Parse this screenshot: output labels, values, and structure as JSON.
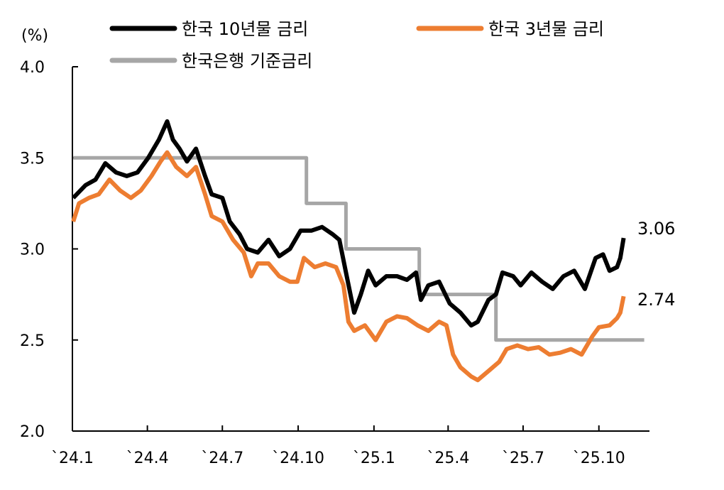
{
  "chart_data": {
    "type": "line",
    "ylabel": "(%)",
    "ylim": [
      2.0,
      4.0
    ],
    "yticks": [
      "4.0",
      "3.5",
      "3.0",
      "2.5",
      "2.0"
    ],
    "xticks": [
      "`24.1",
      "`24.4",
      "`24.7",
      "`24.10",
      "`25.1",
      "`25.4",
      "`25.7",
      "`25.10"
    ],
    "xtick_dates": [
      "2024-01-01",
      "2024-04-01",
      "2024-07-01",
      "2024-10-01",
      "2025-01-01",
      "2025-04-01",
      "2025-07-01",
      "2025-10-01"
    ],
    "grid": false,
    "legend_position": "top",
    "series": [
      {
        "name": "한국 10년물 금리",
        "color": "#000000",
        "end_label": "3.06",
        "points": [
          [
            "2024-01-02",
            3.28
          ],
          [
            "2024-01-17",
            3.35
          ],
          [
            "2024-01-29",
            3.38
          ],
          [
            "2024-02-10",
            3.47
          ],
          [
            "2024-02-23",
            3.42
          ],
          [
            "2024-03-07",
            3.4
          ],
          [
            "2024-03-20",
            3.42
          ],
          [
            "2024-04-02",
            3.5
          ],
          [
            "2024-04-15",
            3.6
          ],
          [
            "2024-04-25",
            3.7
          ],
          [
            "2024-05-02",
            3.6
          ],
          [
            "2024-05-10",
            3.55
          ],
          [
            "2024-05-19",
            3.48
          ],
          [
            "2024-05-30",
            3.55
          ],
          [
            "2024-06-10",
            3.4
          ],
          [
            "2024-06-18",
            3.3
          ],
          [
            "2024-07-01",
            3.28
          ],
          [
            "2024-07-10",
            3.15
          ],
          [
            "2024-07-22",
            3.08
          ],
          [
            "2024-07-31",
            3.0
          ],
          [
            "2024-08-13",
            2.98
          ],
          [
            "2024-08-26",
            3.05
          ],
          [
            "2024-09-08",
            2.96
          ],
          [
            "2024-09-21",
            3.0
          ],
          [
            "2024-10-04",
            3.1
          ],
          [
            "2024-10-17",
            3.1
          ],
          [
            "2024-10-30",
            3.12
          ],
          [
            "2024-11-12",
            3.08
          ],
          [
            "2024-11-20",
            3.05
          ],
          [
            "2024-11-29",
            2.85
          ],
          [
            "2024-12-08",
            2.65
          ],
          [
            "2024-12-16",
            2.75
          ],
          [
            "2024-12-25",
            2.88
          ],
          [
            "2025-01-03",
            2.8
          ],
          [
            "2025-01-16",
            2.85
          ],
          [
            "2025-01-29",
            2.85
          ],
          [
            "2025-02-10",
            2.83
          ],
          [
            "2025-02-21",
            2.87
          ],
          [
            "2025-02-27",
            2.72
          ],
          [
            "2025-03-08",
            2.8
          ],
          [
            "2025-03-21",
            2.82
          ],
          [
            "2025-04-03",
            2.7
          ],
          [
            "2025-04-16",
            2.65
          ],
          [
            "2025-04-29",
            2.58
          ],
          [
            "2025-05-07",
            2.6
          ],
          [
            "2025-05-20",
            2.72
          ],
          [
            "2025-05-29",
            2.75
          ],
          [
            "2025-06-06",
            2.87
          ],
          [
            "2025-06-19",
            2.85
          ],
          [
            "2025-06-28",
            2.8
          ],
          [
            "2025-07-11",
            2.87
          ],
          [
            "2025-07-24",
            2.82
          ],
          [
            "2025-08-06",
            2.78
          ],
          [
            "2025-08-19",
            2.85
          ],
          [
            "2025-09-01",
            2.88
          ],
          [
            "2025-09-14",
            2.78
          ],
          [
            "2025-09-27",
            2.95
          ],
          [
            "2025-10-06",
            2.97
          ],
          [
            "2025-10-14",
            2.88
          ],
          [
            "2025-10-23",
            2.9
          ],
          [
            "2025-10-27",
            2.95
          ],
          [
            "2025-10-31",
            3.06
          ]
        ]
      },
      {
        "name": "한국 3년물 금리",
        "color": "#ED7D31",
        "end_label": "2.74",
        "points": [
          [
            "2024-01-02",
            3.15
          ],
          [
            "2024-01-09",
            3.25
          ],
          [
            "2024-01-21",
            3.28
          ],
          [
            "2024-02-02",
            3.3
          ],
          [
            "2024-02-15",
            3.38
          ],
          [
            "2024-02-28",
            3.32
          ],
          [
            "2024-03-12",
            3.28
          ],
          [
            "2024-03-24",
            3.32
          ],
          [
            "2024-04-06",
            3.4
          ],
          [
            "2024-04-17",
            3.48
          ],
          [
            "2024-04-25",
            3.53
          ],
          [
            "2024-05-06",
            3.45
          ],
          [
            "2024-05-19",
            3.4
          ],
          [
            "2024-05-30",
            3.45
          ],
          [
            "2024-06-10",
            3.3
          ],
          [
            "2024-06-18",
            3.18
          ],
          [
            "2024-07-01",
            3.15
          ],
          [
            "2024-07-14",
            3.05
          ],
          [
            "2024-07-27",
            2.98
          ],
          [
            "2024-08-05",
            2.85
          ],
          [
            "2024-08-13",
            2.92
          ],
          [
            "2024-08-26",
            2.92
          ],
          [
            "2024-09-08",
            2.85
          ],
          [
            "2024-09-21",
            2.82
          ],
          [
            "2024-09-30",
            2.82
          ],
          [
            "2024-10-08",
            2.95
          ],
          [
            "2024-10-21",
            2.9
          ],
          [
            "2024-11-03",
            2.92
          ],
          [
            "2024-11-16",
            2.9
          ],
          [
            "2024-11-25",
            2.8
          ],
          [
            "2024-12-01",
            2.6
          ],
          [
            "2024-12-08",
            2.55
          ],
          [
            "2024-12-21",
            2.58
          ],
          [
            "2025-01-03",
            2.5
          ],
          [
            "2025-01-16",
            2.6
          ],
          [
            "2025-01-29",
            2.63
          ],
          [
            "2025-02-10",
            2.62
          ],
          [
            "2025-02-23",
            2.58
          ],
          [
            "2025-03-08",
            2.55
          ],
          [
            "2025-03-21",
            2.6
          ],
          [
            "2025-03-30",
            2.58
          ],
          [
            "2025-04-07",
            2.42
          ],
          [
            "2025-04-16",
            2.35
          ],
          [
            "2025-04-29",
            2.3
          ],
          [
            "2025-05-07",
            2.28
          ],
          [
            "2025-05-20",
            2.33
          ],
          [
            "2025-06-02",
            2.38
          ],
          [
            "2025-06-11",
            2.45
          ],
          [
            "2025-06-24",
            2.47
          ],
          [
            "2025-07-07",
            2.45
          ],
          [
            "2025-07-20",
            2.46
          ],
          [
            "2025-08-02",
            2.42
          ],
          [
            "2025-08-15",
            2.43
          ],
          [
            "2025-08-28",
            2.45
          ],
          [
            "2025-09-10",
            2.42
          ],
          [
            "2025-09-23",
            2.52
          ],
          [
            "2025-10-01",
            2.57
          ],
          [
            "2025-10-14",
            2.58
          ],
          [
            "2025-10-23",
            2.62
          ],
          [
            "2025-10-27",
            2.65
          ],
          [
            "2025-10-31",
            2.74
          ]
        ]
      },
      {
        "name": "한국은행 기준금리",
        "color": "#A6A6A6",
        "step": true,
        "points": [
          [
            "2024-01-02",
            3.5
          ],
          [
            "2024-10-11",
            3.25
          ],
          [
            "2024-11-28",
            3.0
          ],
          [
            "2025-02-25",
            2.75
          ],
          [
            "2025-05-29",
            2.5
          ],
          [
            "2025-11-25",
            2.5
          ]
        ]
      }
    ]
  }
}
